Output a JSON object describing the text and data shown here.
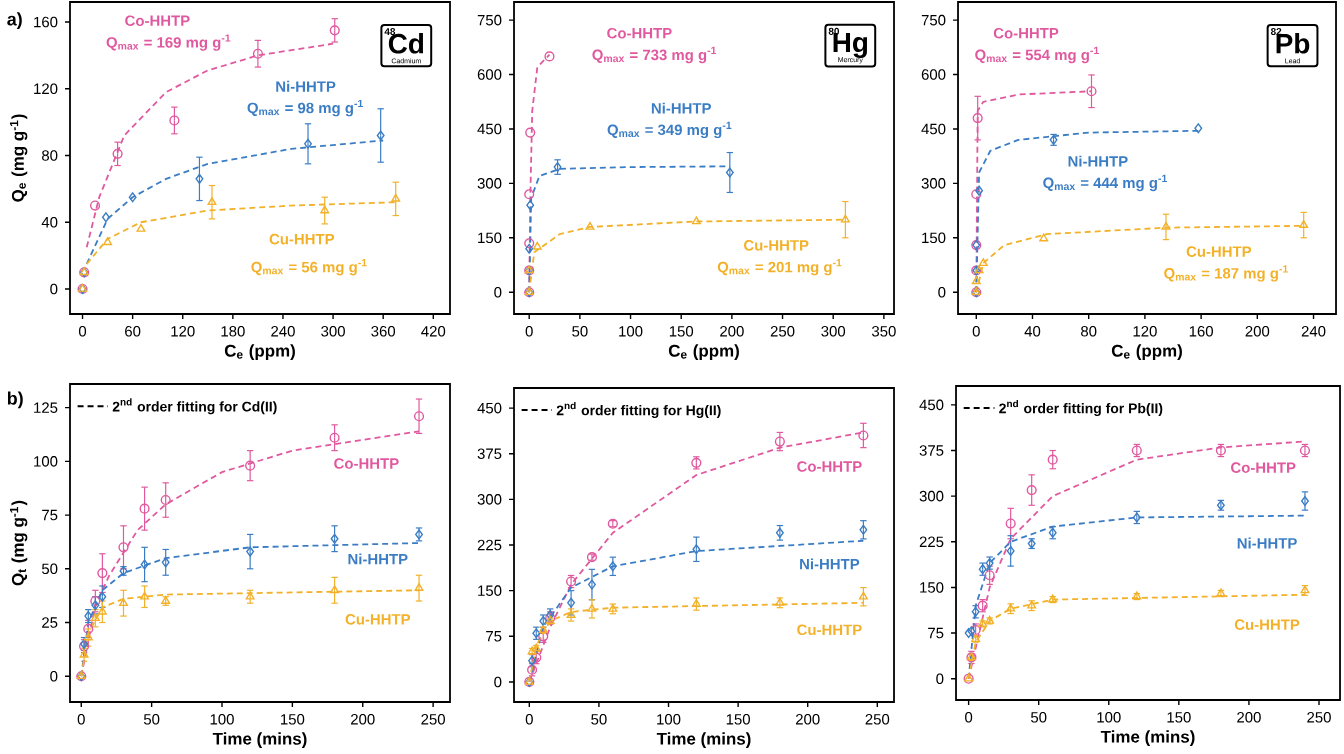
{
  "chart_data": [
    {
      "type": "scatter",
      "xlabel": "C$_{e}$ (ppm)",
      "ylabel": "Q$_{e}$ (mg g$^{-1}$)",
      "xlim": [
        -15,
        440
      ],
      "ylim": [
        -15,
        172
      ],
      "xticks": [
        0,
        60,
        120,
        180,
        240,
        300,
        360,
        420
      ],
      "yticks": [
        0,
        40,
        80,
        120,
        160
      ],
      "annotations": [
        "Q$_{max}$ = 169 mg g$^{-1}$",
        "Q$_{max}$ = 98 mg g$^{-1}$",
        "Q$_{max}$ = 56 mg g$^{-1}$",
        "48",
        "Cd",
        "Cadmium",
        "a)"
      ],
      "series": [
        {
          "name": "Co-HHTP",
          "color": "#e0599f",
          "marker": "circle",
          "x": [
            0,
            2,
            15,
            42,
            110,
            210,
            302
          ],
          "values": [
            0,
            10,
            50,
            81,
            101,
            141,
            155
          ],
          "errors": [
            null,
            null,
            null,
            7,
            8,
            8,
            7
          ]
        },
        {
          "name": "Ni-HHTP",
          "color": "#3b7dc4",
          "marker": "diamond",
          "x": [
            0,
            2,
            28,
            60,
            140,
            270,
            357
          ],
          "values": [
            0,
            10,
            43,
            55,
            66,
            87,
            92
          ],
          "errors": [
            null,
            null,
            null,
            null,
            13,
            12,
            16
          ]
        },
        {
          "name": "Cu-HHTP",
          "color": "#f2b129",
          "marker": "triangle",
          "x": [
            0,
            2,
            30,
            70,
            155,
            290,
            375
          ],
          "values": [
            0,
            10,
            28,
            36,
            52,
            47,
            54
          ],
          "errors": [
            null,
            null,
            null,
            null,
            10,
            8,
            10
          ]
        },
        {
          "type": "line",
          "color": "#e0599f",
          "line_style": "dashed",
          "x": [
            5,
            20,
            50,
            100,
            150,
            210,
            300
          ],
          "values": [
            25,
            55,
            92,
            118,
            131,
            140,
            147
          ]
        },
        {
          "type": "line",
          "color": "#3b7dc4",
          "line_style": "dashed",
          "x": [
            5,
            30,
            60,
            100,
            150,
            250,
            360
          ],
          "values": [
            15,
            42,
            55,
            66,
            75,
            84,
            89
          ]
        },
        {
          "type": "line",
          "color": "#f2b129",
          "line_style": "dashed",
          "x": [
            5,
            30,
            70,
            150,
            250,
            375
          ],
          "values": [
            15,
            30,
            40,
            47,
            50,
            52
          ]
        }
      ]
    },
    {
      "type": "scatter",
      "xlabel": "C$_{e}$ (ppm)",
      "xlim": [
        -15,
        360
      ],
      "ylim": [
        -60,
        800
      ],
      "xticks": [
        0,
        50,
        100,
        150,
        200,
        250,
        300,
        350
      ],
      "yticks": [
        0,
        150,
        300,
        450,
        600,
        750
      ],
      "annotations": [
        "Q$_{max}$ = 733 mg g$^{-1}$",
        "Q$_{max}$ = 349 mg g$^{-1}$",
        "Q$_{max}$ = 201 mg g$^{-1}$",
        "80",
        "Hg",
        "Mercury"
      ],
      "series": [
        {
          "name": "Co-HHTP",
          "color": "#e0599f",
          "marker": "circle",
          "x": [
            0,
            0,
            0,
            0,
            1,
            20
          ],
          "values": [
            0,
            60,
            135,
            270,
            440,
            650
          ]
        },
        {
          "name": "Ni-HHTP",
          "color": "#3b7dc4",
          "marker": "diamond",
          "x": [
            0,
            0,
            0,
            1,
            28,
            198
          ],
          "values": [
            0,
            60,
            120,
            240,
            345,
            330
          ],
          "errors": [
            null,
            null,
            null,
            null,
            20,
            55
          ]
        },
        {
          "name": "Cu-HHTP",
          "color": "#f2b129",
          "marker": "triangle",
          "x": [
            0,
            0,
            8,
            60,
            165,
            312
          ],
          "values": [
            0,
            60,
            125,
            180,
            195,
            200
          ],
          "errors": [
            null,
            null,
            null,
            null,
            null,
            50
          ]
        },
        {
          "type": "line",
          "color": "#e0599f",
          "line_style": "dashed",
          "x": [
            0,
            1,
            3,
            8,
            20
          ],
          "values": [
            0,
            250,
            500,
            620,
            655
          ]
        },
        {
          "type": "line",
          "color": "#3b7dc4",
          "line_style": "dashed",
          "x": [
            0,
            2,
            10,
            30,
            100,
            198
          ],
          "values": [
            0,
            260,
            320,
            340,
            345,
            347
          ]
        },
        {
          "type": "line",
          "color": "#f2b129",
          "line_style": "dashed",
          "x": [
            0,
            5,
            30,
            60,
            165,
            312
          ],
          "values": [
            0,
            110,
            160,
            180,
            195,
            200
          ]
        }
      ]
    },
    {
      "type": "scatter",
      "xlabel": "C$_{e}$ (ppm)",
      "xlim": [
        -13,
        256
      ],
      "ylim": [
        -60,
        800
      ],
      "xticks": [
        0,
        40,
        80,
        120,
        160,
        200,
        240
      ],
      "yticks": [
        0,
        150,
        300,
        450,
        600,
        750
      ],
      "annotations": [
        "Q$_{max}$ = 554 mg g$^{-1}$",
        "Q$_{max}$ = 444 mg g$^{-1}$",
        "Q$_{max}$ = 187 mg g$^{-1}$",
        "82",
        "Pb",
        "Lead"
      ],
      "series": [
        {
          "name": "Co-HHTP",
          "color": "#e0599f",
          "marker": "circle",
          "x": [
            0,
            0,
            0,
            0,
            1,
            82
          ],
          "values": [
            0,
            60,
            130,
            270,
            480,
            554
          ],
          "errors": [
            null,
            null,
            null,
            null,
            60,
            45
          ]
        },
        {
          "name": "Ni-HHTP",
          "color": "#3b7dc4",
          "marker": "diamond",
          "x": [
            0,
            0,
            0,
            2,
            55,
            158
          ],
          "values": [
            0,
            60,
            130,
            280,
            420,
            452
          ],
          "errors": [
            null,
            null,
            null,
            null,
            15,
            null
          ]
        },
        {
          "name": "Cu-HHTP",
          "color": "#f2b129",
          "marker": "triangle",
          "x": [
            0,
            0,
            2,
            5,
            48,
            135,
            233
          ],
          "values": [
            0,
            30,
            60,
            80,
            148,
            180,
            185
          ],
          "errors": [
            null,
            null,
            null,
            null,
            null,
            35,
            35
          ]
        },
        {
          "type": "line",
          "color": "#e0599f",
          "line_style": "dashed",
          "x": [
            0,
            1,
            5,
            30,
            82
          ],
          "values": [
            0,
            500,
            525,
            545,
            554
          ]
        },
        {
          "type": "line",
          "color": "#3b7dc4",
          "line_style": "dashed",
          "x": [
            0,
            2,
            10,
            30,
            80,
            158
          ],
          "values": [
            0,
            330,
            390,
            420,
            440,
            445
          ]
        },
        {
          "type": "line",
          "color": "#f2b129",
          "line_style": "dashed",
          "x": [
            0,
            5,
            20,
            50,
            135,
            233
          ],
          "values": [
            0,
            80,
            130,
            160,
            178,
            183
          ]
        }
      ]
    },
    {
      "type": "scatter",
      "xlabel": "Time (mins)",
      "ylabel": "Q$_{t}$ (mg g$^{-1}$)",
      "xlim": [
        -8,
        262
      ],
      "ylim": [
        -12,
        136
      ],
      "xticks": [
        0,
        50,
        100,
        150,
        200,
        250
      ],
      "yticks": [
        0,
        25,
        50,
        75,
        100,
        125
      ],
      "annotations": [
        "2$^{nd}$ order fitting for Cd(II)",
        "b)"
      ],
      "series": [
        {
          "name": "Co-HHTP",
          "color": "#e0599f",
          "marker": "circle",
          "x": [
            0,
            2,
            5,
            10,
            15,
            30,
            45,
            60,
            120,
            180,
            240
          ],
          "values": [
            0,
            14,
            22,
            35,
            48,
            60,
            78,
            82,
            98,
            111,
            121
          ],
          "errors": [
            null,
            3,
            4,
            5,
            9,
            10,
            10,
            8,
            7,
            6,
            8
          ]
        },
        {
          "name": "Ni-HHTP",
          "color": "#3b7dc4",
          "marker": "diamond",
          "x": [
            0,
            2,
            5,
            10,
            15,
            30,
            45,
            60,
            120,
            180,
            240
          ],
          "values": [
            0,
            15,
            28,
            33,
            37,
            49,
            52,
            53,
            58,
            64,
            66
          ],
          "errors": [
            null,
            3,
            3,
            4,
            5,
            2,
            8,
            6,
            8,
            6,
            3
          ]
        },
        {
          "name": "Cu-HHTP",
          "color": "#f2b129",
          "marker": "triangle",
          "x": [
            0,
            2,
            5,
            10,
            15,
            30,
            45,
            60,
            120,
            180,
            240
          ],
          "values": [
            0,
            10,
            18,
            27,
            30,
            34,
            37,
            35,
            37,
            40,
            41
          ],
          "errors": [
            null,
            3,
            4,
            4,
            5,
            6,
            5,
            2,
            3,
            6,
            6
          ]
        },
        {
          "type": "line",
          "color": "#e0599f",
          "line_style": "dashed",
          "x": [
            0,
            10,
            20,
            40,
            60,
            100,
            150,
            240
          ],
          "values": [
            0,
            33,
            47,
            68,
            80,
            95,
            105,
            114
          ]
        },
        {
          "type": "line",
          "color": "#3b7dc4",
          "line_style": "dashed",
          "x": [
            0,
            5,
            15,
            30,
            60,
            120,
            240
          ],
          "values": [
            0,
            25,
            40,
            48,
            55,
            60,
            62
          ]
        },
        {
          "type": "line",
          "color": "#f2b129",
          "line_style": "dashed",
          "x": [
            0,
            5,
            15,
            30,
            60,
            240
          ],
          "values": [
            0,
            20,
            32,
            36,
            38,
            40
          ]
        }
      ]
    },
    {
      "type": "scatter",
      "xlabel": "Time (mins)",
      "xlim": [
        -11,
        262
      ],
      "ylim": [
        -33,
        483
      ],
      "xticks": [
        0,
        50,
        100,
        150,
        200,
        250
      ],
      "yticks": [
        0,
        75,
        150,
        225,
        300,
        375,
        450
      ],
      "annotations": [
        "2$^{nd}$ order fitting for Hg(II)"
      ],
      "series": [
        {
          "name": "Co-HHTP",
          "color": "#e0599f",
          "marker": "circle",
          "x": [
            0,
            2,
            5,
            10,
            15,
            30,
            45,
            60,
            120,
            180,
            240
          ],
          "values": [
            0,
            20,
            40,
            75,
            105,
            165,
            205,
            260,
            360,
            395,
            405
          ],
          "errors": [
            null,
            10,
            10,
            10,
            10,
            10,
            5,
            5,
            10,
            15,
            20
          ]
        },
        {
          "name": "Ni-HHTP",
          "color": "#3b7dc4",
          "marker": "diamond",
          "x": [
            0,
            2,
            5,
            10,
            15,
            30,
            45,
            60,
            120,
            180,
            240
          ],
          "values": [
            0,
            35,
            80,
            100,
            110,
            130,
            160,
            190,
            218,
            245,
            250
          ],
          "errors": [
            null,
            10,
            10,
            10,
            10,
            20,
            25,
            15,
            20,
            12,
            15
          ]
        },
        {
          "name": "Cu-HHTP",
          "color": "#f2b129",
          "marker": "triangle",
          "x": [
            0,
            2,
            5,
            10,
            15,
            30,
            45,
            60,
            120,
            180,
            240
          ],
          "values": [
            0,
            50,
            55,
            85,
            100,
            110,
            120,
            120,
            128,
            130,
            140
          ],
          "errors": [
            null,
            5,
            5,
            5,
            5,
            10,
            15,
            8,
            10,
            8,
            15
          ]
        },
        {
          "type": "line",
          "color": "#e0599f",
          "line_style": "dashed",
          "x": [
            0,
            15,
            30,
            60,
            120,
            180,
            240
          ],
          "values": [
            0,
            90,
            160,
            245,
            340,
            385,
            410
          ]
        },
        {
          "type": "line",
          "color": "#3b7dc4",
          "line_style": "dashed",
          "x": [
            0,
            10,
            30,
            60,
            120,
            240
          ],
          "values": [
            0,
            90,
            155,
            190,
            215,
            232
          ]
        },
        {
          "type": "line",
          "color": "#f2b129",
          "line_style": "dashed",
          "x": [
            0,
            5,
            15,
            30,
            60,
            240
          ],
          "values": [
            0,
            60,
            100,
            115,
            122,
            130
          ]
        }
      ]
    },
    {
      "type": "scatter",
      "xlabel": "Time (mins)",
      "xlim": [
        -9,
        265
      ],
      "ylim": [
        -35,
        481
      ],
      "xticks": [
        0,
        50,
        100,
        150,
        200,
        250
      ],
      "yticks": [
        0,
        75,
        150,
        225,
        300,
        375,
        450
      ],
      "annotations": [
        "2$^{nd}$ order fitting for Pb(II)"
      ],
      "series": [
        {
          "name": "Co-HHTP",
          "color": "#e0599f",
          "marker": "circle",
          "x": [
            0,
            2,
            5,
            10,
            15,
            30,
            45,
            60,
            120,
            180,
            240
          ],
          "values": [
            0,
            35,
            80,
            120,
            170,
            255,
            310,
            360,
            375,
            375,
            375
          ],
          "errors": [
            null,
            10,
            10,
            10,
            15,
            25,
            25,
            15,
            10,
            10,
            10
          ]
        },
        {
          "name": "Ni-HHTP",
          "color": "#3b7dc4",
          "marker": "diamond",
          "x": [
            0,
            2,
            5,
            10,
            15,
            30,
            45,
            60,
            120,
            180,
            240
          ],
          "values": [
            75,
            78,
            110,
            180,
            190,
            210,
            222,
            240,
            265,
            285,
            292
          ],
          "errors": [
            null,
            null,
            10,
            10,
            10,
            25,
            8,
            10,
            10,
            8,
            15
          ]
        },
        {
          "name": "Cu-HHTP",
          "color": "#f2b129",
          "marker": "triangle",
          "x": [
            0,
            2,
            5,
            10,
            15,
            30,
            45,
            60,
            120,
            180,
            240
          ],
          "values": [
            0,
            35,
            65,
            90,
            95,
            115,
            120,
            130,
            135,
            140,
            145
          ],
          "errors": [
            null,
            5,
            5,
            5,
            5,
            8,
            8,
            5,
            5,
            5,
            8
          ]
        },
        {
          "type": "line",
          "color": "#e0599f",
          "line_style": "dashed",
          "x": [
            0,
            15,
            30,
            60,
            120,
            180,
            240
          ],
          "values": [
            0,
            150,
            230,
            300,
            360,
            380,
            390
          ]
        },
        {
          "type": "line",
          "color": "#3b7dc4",
          "line_style": "dashed",
          "x": [
            0,
            5,
            15,
            30,
            60,
            120,
            240
          ],
          "values": [
            0,
            120,
            190,
            225,
            250,
            265,
            268
          ]
        },
        {
          "type": "line",
          "color": "#f2b129",
          "line_style": "dashed",
          "x": [
            0,
            5,
            15,
            30,
            60,
            240
          ],
          "values": [
            0,
            60,
            95,
            115,
            130,
            138
          ]
        }
      ]
    }
  ]
}
